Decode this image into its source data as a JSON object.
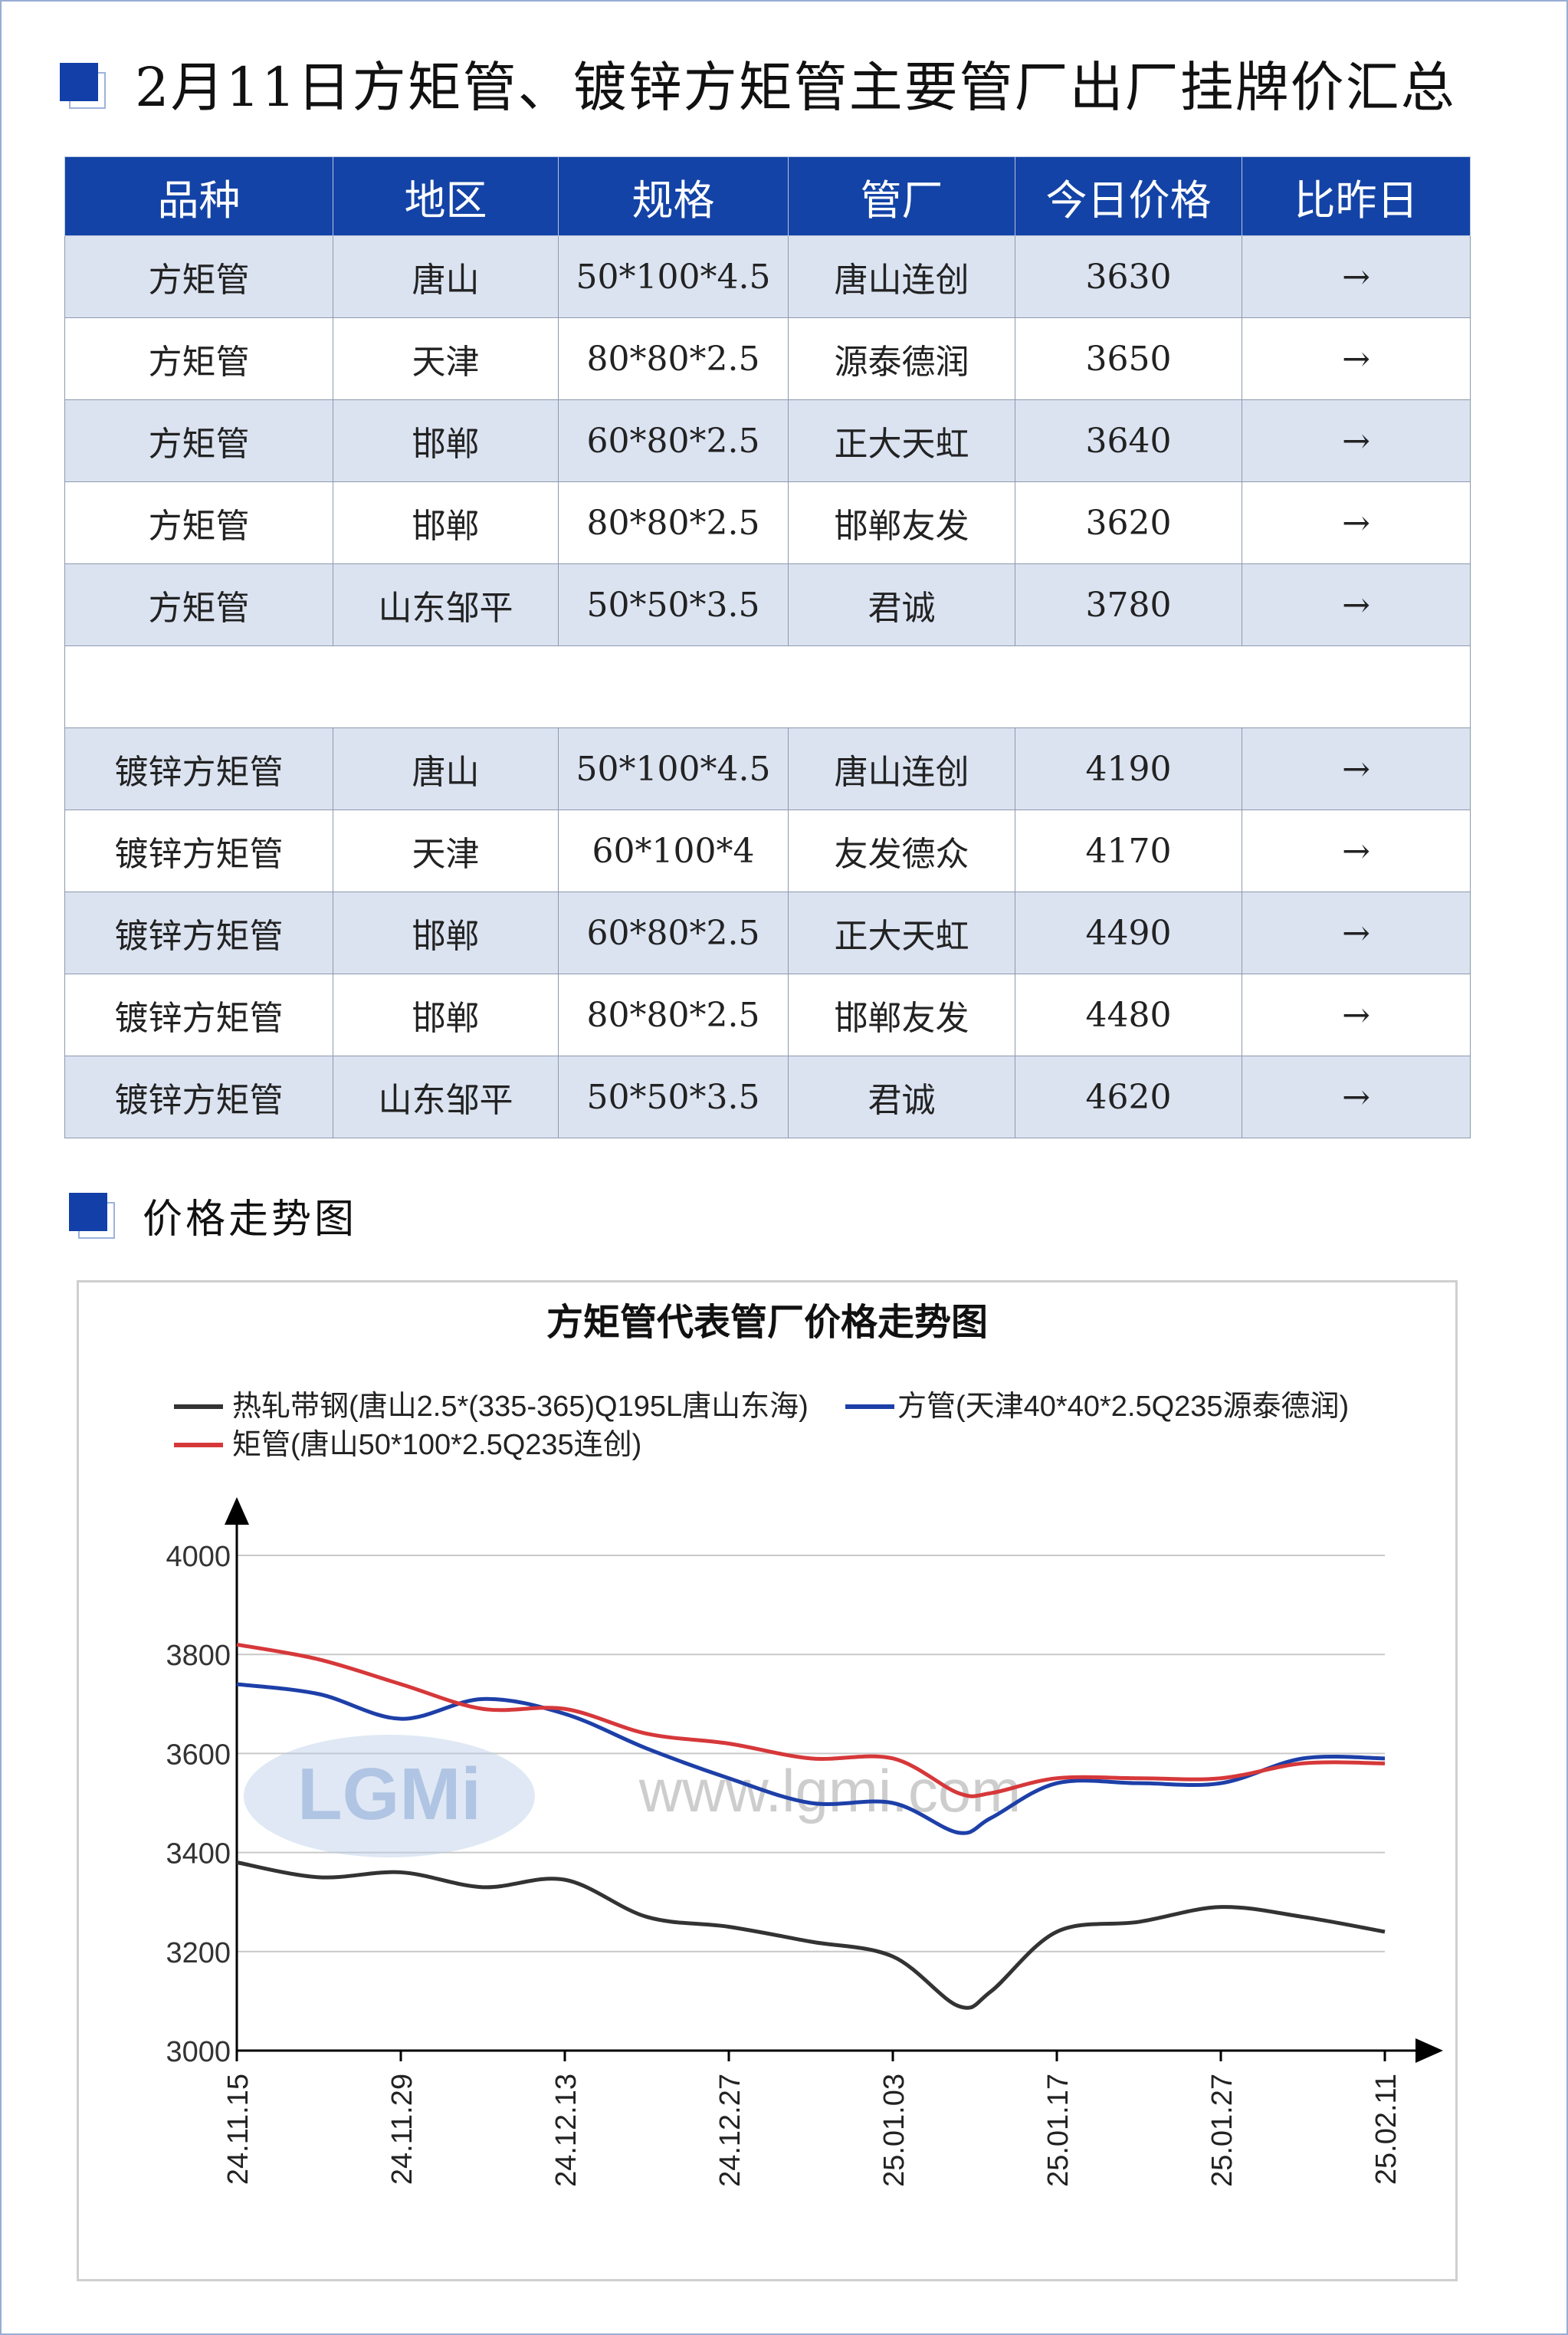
{
  "header": {
    "title": "2月11日方矩管、镀锌方矩管主要管厂出厂挂牌价汇总",
    "chart_section_title": "价格走势图"
  },
  "table": {
    "columns": [
      "品种",
      "地区",
      "规格",
      "管厂",
      "今日价格",
      "比昨日"
    ],
    "rows": [
      [
        "方矩管",
        "唐山",
        "50*100*4.5",
        "唐山连创",
        "3630",
        "→"
      ],
      [
        "方矩管",
        "天津",
        "80*80*2.5",
        "源泰德润",
        "3650",
        "→"
      ],
      [
        "方矩管",
        "邯郸",
        "60*80*2.5",
        "正大天虹",
        "3640",
        "→"
      ],
      [
        "方矩管",
        "邯郸",
        "80*80*2.5",
        "邯郸友发",
        "3620",
        "→"
      ],
      [
        "方矩管",
        "山东邹平",
        "50*50*3.5",
        "君诚",
        "3780",
        "→"
      ],
      [
        "镀锌方矩管",
        "唐山",
        "50*100*4.5",
        "唐山连创",
        "4190",
        "→"
      ],
      [
        "镀锌方矩管",
        "天津",
        "60*100*4",
        "友发德众",
        "4170",
        "→"
      ],
      [
        "镀锌方矩管",
        "邯郸",
        "60*80*2.5",
        "正大天虹",
        "4490",
        "→"
      ],
      [
        "镀锌方矩管",
        "邯郸",
        "80*80*2.5",
        "邯郸友发",
        "4480",
        "→"
      ],
      [
        "镀锌方矩管",
        "山东邹平",
        "50*50*3.5",
        "君诚",
        "4620",
        "→"
      ]
    ]
  },
  "watermark": {
    "logo": "LGMi",
    "url": "www.lgmi.com"
  },
  "colors": {
    "accent": "#1343a6",
    "band": "#dbe3f1",
    "black_series": "#333333",
    "blue_series": "#1d3fa8",
    "red_series": "#d6383a"
  },
  "chart_data": {
    "type": "line",
    "title": "方矩管代表管厂价格走势图",
    "xlabel": "",
    "ylabel": "",
    "x_ticks": [
      "24.11.15",
      "24.11.29",
      "24.12.13",
      "24.12.27",
      "25.01.03",
      "25.01.17",
      "25.01.27",
      "25.02.11"
    ],
    "ylim": [
      3000,
      4000
    ],
    "y_ticks": [
      3000,
      3200,
      3400,
      3600,
      3800,
      4000
    ],
    "grid": true,
    "legend_position": "top",
    "series": [
      {
        "name": "热轧带钢(唐山2.5*(335-365)Q195L唐山东海)",
        "color": "#333333",
        "points": [
          [
            0,
            3380
          ],
          [
            0.5,
            3350
          ],
          [
            1,
            3360
          ],
          [
            1.5,
            3330
          ],
          [
            2,
            3345
          ],
          [
            2.5,
            3270
          ],
          [
            3,
            3250
          ],
          [
            3.5,
            3220
          ],
          [
            4,
            3190
          ],
          [
            4.4,
            3090
          ],
          [
            4.6,
            3120
          ],
          [
            5,
            3240
          ],
          [
            5.5,
            3260
          ],
          [
            6,
            3290
          ],
          [
            6.5,
            3270
          ],
          [
            7,
            3240
          ]
        ]
      },
      {
        "name": "方管(天津40*40*2.5Q235源泰德润)",
        "color": "#1d3fa8",
        "points": [
          [
            0,
            3740
          ],
          [
            0.5,
            3720
          ],
          [
            1,
            3670
          ],
          [
            1.5,
            3710
          ],
          [
            2,
            3680
          ],
          [
            2.5,
            3610
          ],
          [
            3,
            3550
          ],
          [
            3.5,
            3500
          ],
          [
            4,
            3500
          ],
          [
            4.4,
            3440
          ],
          [
            4.6,
            3470
          ],
          [
            5,
            3540
          ],
          [
            5.5,
            3540
          ],
          [
            6,
            3540
          ],
          [
            6.5,
            3590
          ],
          [
            7,
            3590
          ]
        ]
      },
      {
        "name": "矩管(唐山50*100*2.5Q235连创)",
        "color": "#d6383a",
        "points": [
          [
            0,
            3820
          ],
          [
            0.5,
            3790
          ],
          [
            1,
            3740
          ],
          [
            1.5,
            3690
          ],
          [
            2,
            3690
          ],
          [
            2.5,
            3640
          ],
          [
            3,
            3620
          ],
          [
            3.5,
            3590
          ],
          [
            4,
            3590
          ],
          [
            4.4,
            3520
          ],
          [
            4.6,
            3520
          ],
          [
            5,
            3550
          ],
          [
            5.5,
            3550
          ],
          [
            6,
            3550
          ],
          [
            6.5,
            3580
          ],
          [
            7,
            3580
          ]
        ]
      }
    ]
  }
}
